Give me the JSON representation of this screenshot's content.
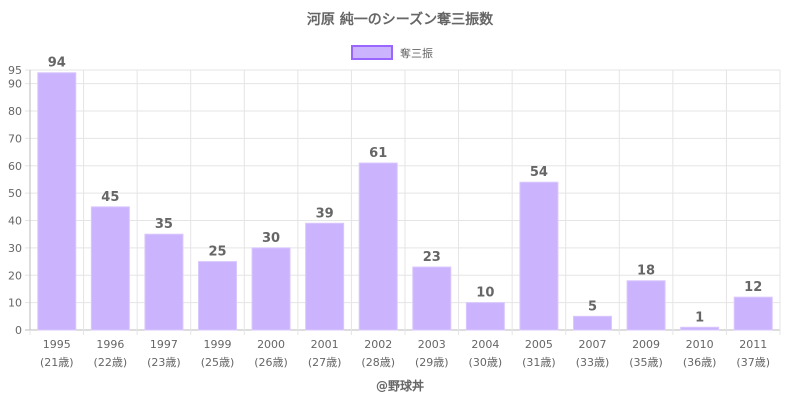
{
  "chart_data": {
    "type": "bar",
    "title": "河原 純一のシーズン奪三振数",
    "legend": {
      "label": "奪三振",
      "position": "top"
    },
    "categories": [
      "1995",
      "1996",
      "1997",
      "1999",
      "2000",
      "2001",
      "2002",
      "2003",
      "2004",
      "2005",
      "2007",
      "2009",
      "2010",
      "2011"
    ],
    "sublabels": [
      "(21歳)",
      "(22歳)",
      "(23歳)",
      "(25歳)",
      "(26歳)",
      "(27歳)",
      "(28歳)",
      "(29歳)",
      "(30歳)",
      "(31歳)",
      "(33歳)",
      "(35歳)",
      "(36歳)",
      "(37歳)"
    ],
    "series": [
      {
        "name": "奪三振",
        "values": [
          94,
          45,
          35,
          25,
          30,
          39,
          61,
          23,
          10,
          54,
          5,
          18,
          1,
          12
        ]
      }
    ],
    "ylim": [
      0,
      95
    ],
    "yticks": [
      0,
      10,
      20,
      30,
      40,
      50,
      60,
      70,
      80,
      90,
      95
    ],
    "grid": true,
    "colors": {
      "fill": "#cbb3fd",
      "border": "#9966ff"
    },
    "footer": "@野球丼"
  }
}
